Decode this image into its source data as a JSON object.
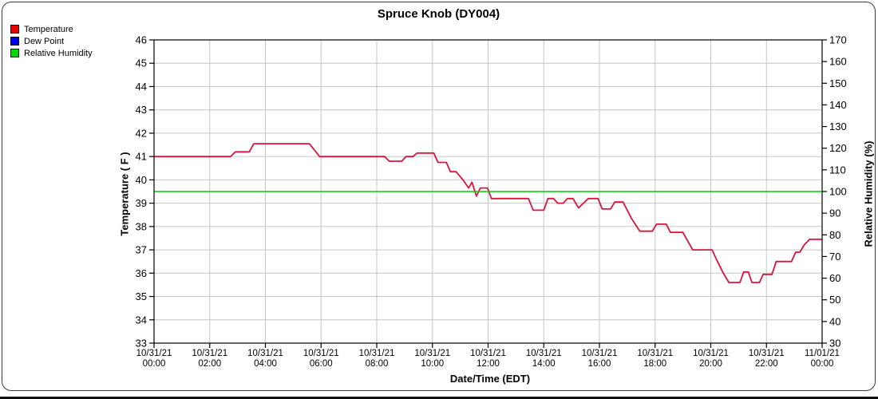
{
  "legend": {
    "items": [
      {
        "label": "Temperature",
        "color": "#ee0000"
      },
      {
        "label": "Dew Point",
        "color": "#0000ee"
      },
      {
        "label": "Relative Humidity",
        "color": "#00d800"
      }
    ]
  },
  "chart_data": {
    "type": "line",
    "title": "Spruce Knob (DY004)",
    "xlabel": "Date/Time (EDT)",
    "ylabel_left": "Temperature ( F )",
    "ylabel_right": "Relative Humidity (%)",
    "xlim": [
      0,
      24
    ],
    "x_unit": "hours from 10/31/21 00:00",
    "ylim_left": [
      33,
      46
    ],
    "ylim_right": [
      30,
      170
    ],
    "grid": true,
    "legend_position": "top-left",
    "left_ticks": [
      46,
      45,
      44,
      43,
      42,
      41,
      40,
      39,
      38,
      37,
      36,
      35,
      34,
      33
    ],
    "right_ticks": [
      170,
      160,
      150,
      140,
      130,
      120,
      110,
      100,
      90,
      80,
      70,
      60,
      50,
      40,
      30
    ],
    "x_ticks": [
      {
        "date": "10/31/21",
        "time": "00:00"
      },
      {
        "date": "10/31/21",
        "time": "02:00"
      },
      {
        "date": "10/31/21",
        "time": "04:00"
      },
      {
        "date": "10/31/21",
        "time": "06:00"
      },
      {
        "date": "10/31/21",
        "time": "08:00"
      },
      {
        "date": "10/31/21",
        "time": "10:00"
      },
      {
        "date": "10/31/21",
        "time": "12:00"
      },
      {
        "date": "10/31/21",
        "time": "14:00"
      },
      {
        "date": "10/31/21",
        "time": "16:00"
      },
      {
        "date": "10/31/21",
        "time": "18:00"
      },
      {
        "date": "10/31/21",
        "time": "20:00"
      },
      {
        "date": "10/31/21",
        "time": "22:00"
      },
      {
        "date": "11/01/21",
        "time": "00:00"
      }
    ],
    "series": [
      {
        "name": "Temperature",
        "axis": "left",
        "color": "#dc143c",
        "width": 1.8,
        "points": [
          [
            0,
            41
          ],
          [
            2.75,
            41
          ],
          [
            2.92,
            41.2
          ],
          [
            3.42,
            41.2
          ],
          [
            3.58,
            41.55
          ],
          [
            5.58,
            41.55
          ],
          [
            5.95,
            41
          ],
          [
            8.28,
            41
          ],
          [
            8.45,
            40.8
          ],
          [
            8.9,
            40.8
          ],
          [
            9.05,
            41
          ],
          [
            9.3,
            41
          ],
          [
            9.45,
            41.15
          ],
          [
            10.05,
            41.15
          ],
          [
            10.2,
            40.75
          ],
          [
            10.5,
            40.75
          ],
          [
            10.65,
            40.35
          ],
          [
            10.85,
            40.35
          ],
          [
            11.1,
            40.0
          ],
          [
            11.3,
            39.65
          ],
          [
            11.42,
            39.9
          ],
          [
            11.58,
            39.3
          ],
          [
            11.72,
            39.65
          ],
          [
            11.98,
            39.65
          ],
          [
            12.12,
            39.2
          ],
          [
            13.45,
            39.2
          ],
          [
            13.62,
            38.7
          ],
          [
            14.0,
            38.7
          ],
          [
            14.15,
            39.2
          ],
          [
            14.35,
            39.2
          ],
          [
            14.5,
            39.0
          ],
          [
            14.7,
            39.0
          ],
          [
            14.85,
            39.2
          ],
          [
            15.05,
            39.2
          ],
          [
            15.25,
            38.8
          ],
          [
            15.6,
            39.2
          ],
          [
            15.95,
            39.2
          ],
          [
            16.1,
            38.75
          ],
          [
            16.4,
            38.75
          ],
          [
            16.55,
            39.05
          ],
          [
            16.85,
            39.05
          ],
          [
            17.15,
            38.35
          ],
          [
            17.45,
            37.8
          ],
          [
            17.9,
            37.8
          ],
          [
            18.05,
            38.1
          ],
          [
            18.4,
            38.1
          ],
          [
            18.55,
            37.75
          ],
          [
            19.0,
            37.75
          ],
          [
            19.35,
            37.0
          ],
          [
            20.05,
            37.0
          ],
          [
            20.2,
            36.6
          ],
          [
            20.45,
            36.0
          ],
          [
            20.65,
            35.6
          ],
          [
            21.05,
            35.6
          ],
          [
            21.18,
            36.05
          ],
          [
            21.35,
            36.05
          ],
          [
            21.48,
            35.6
          ],
          [
            21.75,
            35.6
          ],
          [
            21.88,
            35.95
          ],
          [
            22.2,
            35.95
          ],
          [
            22.35,
            36.5
          ],
          [
            22.9,
            36.5
          ],
          [
            23.05,
            36.9
          ],
          [
            23.2,
            36.9
          ],
          [
            23.35,
            37.2
          ],
          [
            23.55,
            37.45
          ],
          [
            24,
            37.45
          ]
        ]
      },
      {
        "name": "Relative Humidity",
        "axis": "right",
        "color": "#00cc00",
        "width": 1.6,
        "points": [
          [
            0,
            100
          ],
          [
            24,
            100
          ]
        ]
      }
    ]
  }
}
